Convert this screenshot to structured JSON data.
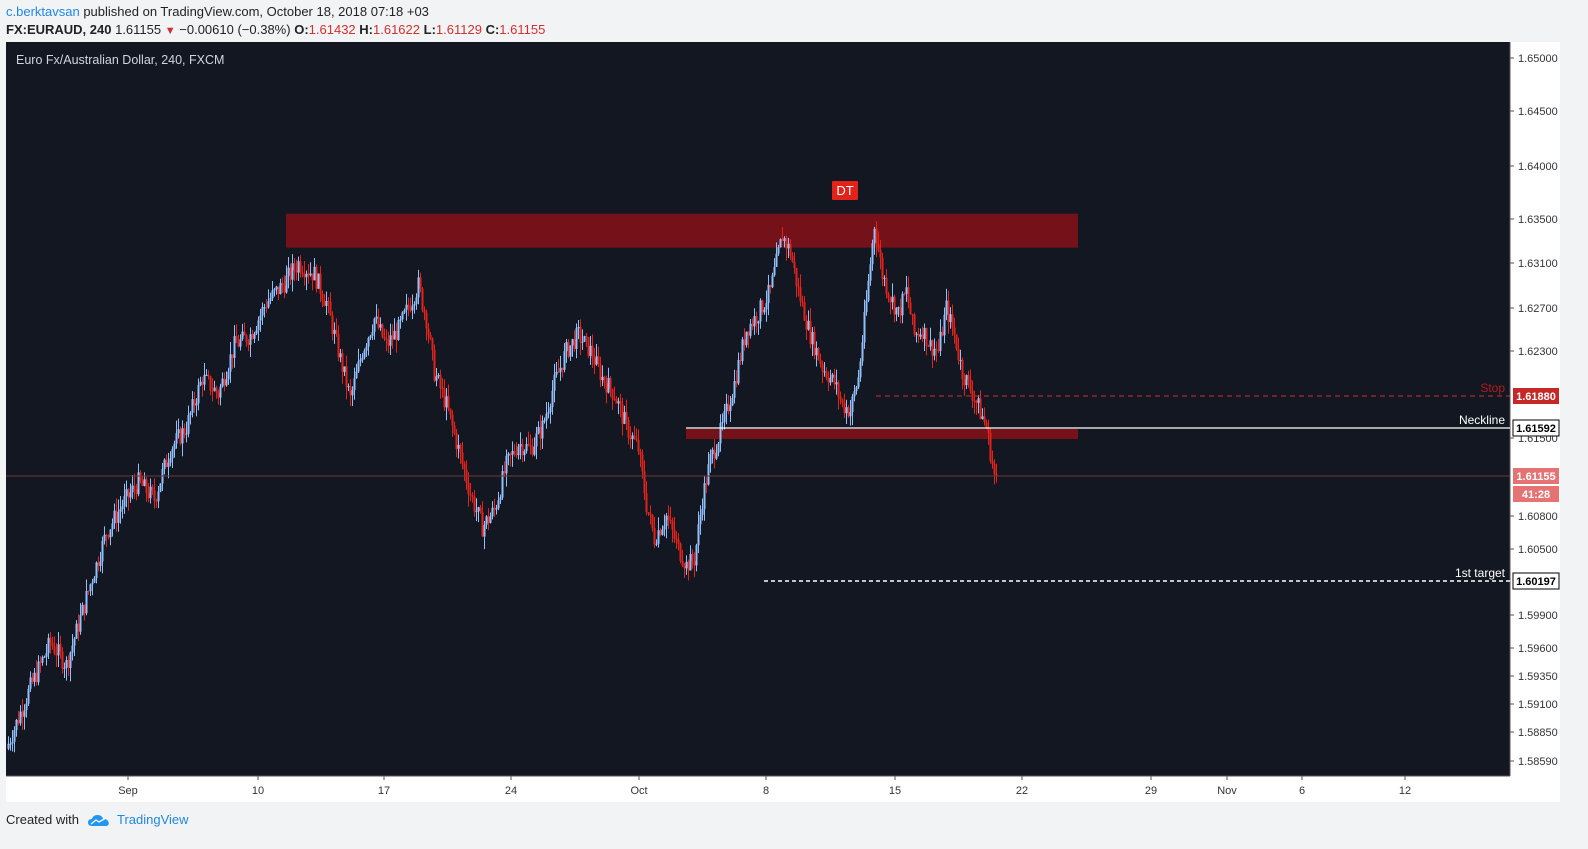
{
  "header": {
    "user": "c.berktavsan",
    "published": "published on TradingView.com, October 18, 2018 07:18 +03",
    "symbol": "FX:EURAUD, 240",
    "last": "1.61155",
    "change_arrow": "▼",
    "change": "−0.00610 (−0.38%)",
    "o_label": "O:",
    "o_value": "1.61432",
    "h_label": "H:",
    "h_value": "1.61622",
    "l_label": "L:",
    "l_value": "1.61129",
    "c_label": "C:",
    "c_value": "1.61155"
  },
  "footer": {
    "created": "Created with",
    "brand": "TradingView"
  },
  "colors": {
    "background": "#131722",
    "up": "#90bff9",
    "down": "#e32219",
    "zone": "#7a1118",
    "stop": "#d32f2f"
  },
  "chart_data": {
    "type": "candlestick",
    "title": "Euro Fx/Australian Dollar, 240, FXCM",
    "y_ticks": [
      "1.65000",
      "1.64500",
      "1.64000",
      "1.63500",
      "1.63100",
      "1.62700",
      "1.62300",
      "1.61500",
      "1.60800",
      "1.60500",
      "1.59900",
      "1.59600",
      "1.59350",
      "1.59100",
      "1.58850",
      "1.58590"
    ],
    "x_ticks": [
      "Sep",
      "10",
      "17",
      "24",
      "Oct",
      "8",
      "15",
      "22",
      "29",
      "Nov",
      "6",
      "12"
    ],
    "series": [
      {
        "approx_path": [
          [
            0,
            1.587
          ],
          [
            12,
            1.5925
          ],
          [
            22,
            1.5965
          ],
          [
            30,
            1.5945
          ],
          [
            40,
            1.6005
          ],
          [
            50,
            1.6065
          ],
          [
            58,
            1.609
          ],
          [
            66,
            1.611
          ],
          [
            74,
            1.6095
          ],
          [
            82,
            1.614
          ],
          [
            90,
            1.616
          ],
          [
            98,
            1.6205
          ],
          [
            106,
            1.619
          ],
          [
            114,
            1.6235
          ],
          [
            122,
            1.6245
          ],
          [
            130,
            1.6275
          ],
          [
            138,
            1.629
          ],
          [
            146,
            1.631
          ],
          [
            154,
            1.63
          ],
          [
            160,
            1.6275
          ],
          [
            166,
            1.623
          ],
          [
            172,
            1.6185
          ],
          [
            178,
            1.623
          ],
          [
            184,
            1.626
          ],
          [
            190,
            1.6235
          ],
          [
            196,
            1.625
          ],
          [
            202,
            1.6275
          ],
          [
            206,
            1.629
          ],
          [
            210,
            1.626
          ],
          [
            214,
            1.621
          ],
          [
            220,
            1.618
          ],
          [
            226,
            1.614
          ],
          [
            232,
            1.61
          ],
          [
            238,
            1.607
          ],
          [
            244,
            1.6085
          ],
          [
            250,
            1.6125
          ],
          [
            256,
            1.6145
          ],
          [
            262,
            1.614
          ],
          [
            268,
            1.616
          ],
          [
            274,
            1.62
          ],
          [
            280,
            1.623
          ],
          [
            286,
            1.6245
          ],
          [
            292,
            1.623
          ],
          [
            298,
            1.6205
          ],
          [
            304,
            1.619
          ],
          [
            310,
            1.616
          ],
          [
            316,
            1.614
          ],
          [
            320,
            1.609
          ],
          [
            324,
            1.606
          ],
          [
            330,
            1.608
          ],
          [
            336,
            1.605
          ],
          [
            340,
            1.6035
          ],
          [
            344,
            1.604
          ],
          [
            348,
            1.6095
          ],
          [
            352,
            1.613
          ],
          [
            358,
            1.616
          ],
          [
            364,
            1.62
          ],
          [
            370,
            1.625
          ],
          [
            376,
            1.6265
          ],
          [
            382,
            1.6285
          ],
          [
            388,
            1.6335
          ],
          [
            392,
            1.632
          ],
          [
            396,
            1.6285
          ],
          [
            402,
            1.6245
          ],
          [
            408,
            1.6215
          ],
          [
            414,
            1.62
          ],
          [
            418,
            1.618
          ],
          [
            422,
            1.6175
          ],
          [
            426,
            1.6205
          ],
          [
            430,
            1.6275
          ],
          [
            434,
            1.6345
          ],
          [
            438,
            1.63
          ],
          [
            442,
            1.628
          ],
          [
            446,
            1.6265
          ],
          [
            450,
            1.6285
          ],
          [
            454,
            1.6245
          ],
          [
            458,
            1.625
          ],
          [
            462,
            1.6235
          ],
          [
            466,
            1.623
          ],
          [
            470,
            1.627
          ],
          [
            474,
            1.6245
          ],
          [
            478,
            1.621
          ],
          [
            482,
            1.6195
          ],
          [
            486,
            1.6178
          ],
          [
            490,
            1.616
          ],
          [
            494,
            1.61155
          ]
        ]
      }
    ],
    "last_price": "1.61155",
    "countdown": "41:28",
    "annotations": {
      "dt_label": "DT",
      "stop_label": "Stop",
      "stop_price": "1.61880",
      "stop_value": 1.6188,
      "neckline_label": "Neckline",
      "neckline_price": "1.61592",
      "neckline_value": 1.61592,
      "target_label": "1st target",
      "target_price": "1.60197",
      "target_value": 1.60197
    }
  }
}
